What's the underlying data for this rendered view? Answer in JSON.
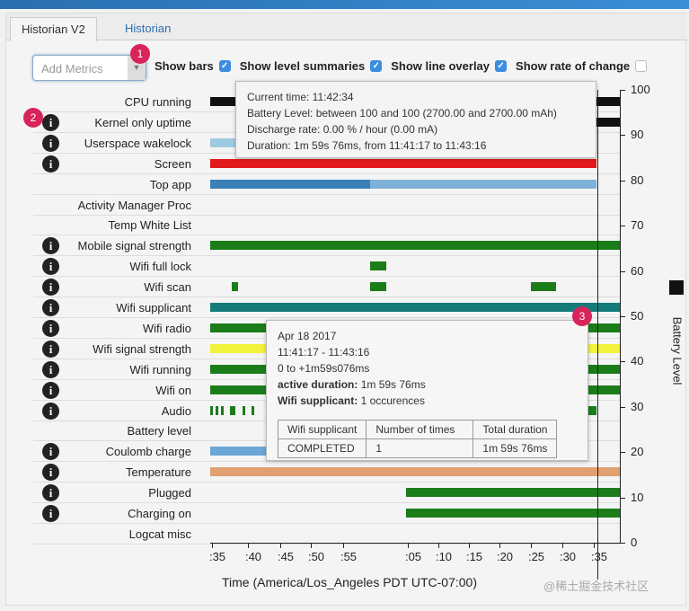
{
  "tabs": [
    {
      "label": "Historian V2"
    },
    {
      "label": "Historian"
    }
  ],
  "controls": {
    "add_metrics_placeholder": "Add Metrics",
    "show_bars": "Show bars",
    "show_level_summaries": "Show level summaries",
    "show_line_overlay": "Show line overlay",
    "show_rate_of_change": "Show rate of change",
    "checks": {
      "show_bars": true,
      "show_level_summaries": true,
      "show_line_overlay": true,
      "show_rate_of_change": false
    }
  },
  "badges": [
    "1",
    "2",
    "3"
  ],
  "rows": [
    {
      "label": "CPU running"
    },
    {
      "label": "Kernel only uptime"
    },
    {
      "label": "Userspace wakelock"
    },
    {
      "label": "Screen"
    },
    {
      "label": "Top app"
    },
    {
      "label": "Activity Manager Proc"
    },
    {
      "label": "Temp White List"
    },
    {
      "label": "Mobile signal strength"
    },
    {
      "label": "Wifi full lock"
    },
    {
      "label": "Wifi scan"
    },
    {
      "label": "Wifi supplicant"
    },
    {
      "label": "Wifi radio"
    },
    {
      "label": "Wifi signal strength"
    },
    {
      "label": "Wifi running"
    },
    {
      "label": "Wifi on"
    },
    {
      "label": "Audio"
    },
    {
      "label": "Battery level"
    },
    {
      "label": "Coulomb charge"
    },
    {
      "label": "Temperature"
    },
    {
      "label": "Plugged"
    },
    {
      "label": "Charging on"
    },
    {
      "label": "Logcat misc"
    }
  ],
  "y_axis": {
    "ticks": [
      "100",
      "90",
      "80",
      "70",
      "60",
      "50",
      "40",
      "30",
      "20",
      "10",
      "0"
    ],
    "legend": "Battery Level"
  },
  "x_axis": {
    "ticks": [
      ":35",
      ":40",
      ":45",
      ":50",
      ":55",
      ":05",
      ":10",
      ":15",
      ":20",
      ":25",
      ":30",
      ":35"
    ],
    "title": "Time (America/Los_Angeles PDT UTC-07:00)"
  },
  "tooltip_battery": {
    "lines": [
      "Current time: 11:42:34",
      "Battery Level: between 100 and 100 (2700.00 and 2700.00 mAh)",
      "Discharge rate: 0.00 % / hour (0.00 mA)",
      "Duration: 1m 59s 76ms, from 11:41:17 to 11:43:16"
    ]
  },
  "tooltip_wifi": {
    "date": "Apr 18 2017",
    "range": "11:41:17 - 11:43:16",
    "offset": "0 to +1m59s076ms",
    "active_label": "active duration:",
    "active_value": " 1m 59s 76ms",
    "count_label": "Wifi supplicant:",
    "count_value": " 1 occurences",
    "table": {
      "headers": [
        "Wifi supplicant",
        "Number of times",
        "Total duration"
      ],
      "rows": [
        [
          "COMPLETED",
          "1",
          "1m 59s 76ms"
        ]
      ]
    }
  },
  "watermark": "@稀土掘金技术社区",
  "colors": {
    "screen": "#e31a1c",
    "green": "#1a7d1a",
    "teal": "#157a7a",
    "topapp": "#3a7fb8",
    "temp": "#e0a070",
    "yellow": "#f2f23a",
    "accent": "#d8245a"
  }
}
